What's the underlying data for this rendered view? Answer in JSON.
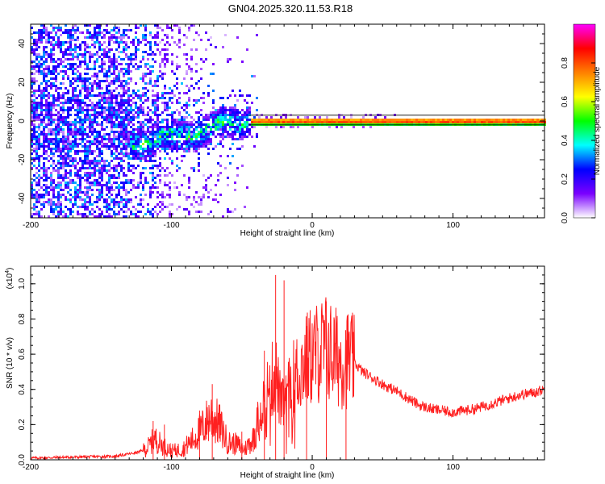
{
  "title": "GN04.2025.320.11.53.R18",
  "chart_data": [
    {
      "type": "heatmap",
      "name": "spectrogram",
      "xlabel": "Height of straight line (km)",
      "ylabel": "Frequency (Hz)",
      "xlim": [
        -200,
        165
      ],
      "ylim": [
        -50,
        50
      ],
      "xticks": [
        -200,
        -100,
        0,
        100
      ],
      "yticks": [
        -40,
        -20,
        0,
        20,
        40
      ],
      "colorbar": {
        "label": "Normalized spectral amplitude",
        "range": [
          0.0,
          1.0
        ],
        "ticks": [
          0.0,
          0.2,
          0.4,
          0.6,
          0.8
        ],
        "colors": [
          "#ffffff",
          "#7a00ff",
          "#0000ff",
          "#00ffff",
          "#00ff00",
          "#ffff00",
          "#ff8000",
          "#ff0000",
          "#ff00ff"
        ]
      },
      "features": [
        {
          "name": "dominant-tone",
          "x_range": [
            -45,
            165
          ],
          "frequency": 0.5,
          "amplitude": 0.95
        },
        {
          "name": "noisy-scatter",
          "x_range": [
            -200,
            -40
          ],
          "frequency_spread": 50,
          "amplitude": 0.25
        },
        {
          "name": "converging-branch",
          "x_range": [
            -130,
            -45
          ],
          "frequency_range": [
            -10,
            2
          ],
          "amplitude": 0.4
        }
      ]
    },
    {
      "type": "line",
      "name": "snr-plot",
      "xlabel": "Height of straight line (km)",
      "ylabel": "SNR (10 * v/v)",
      "scale_note": "(x10",
      "scale_exp": "4",
      "scale_close": ")",
      "xlim": [
        -200,
        165
      ],
      "ylim": [
        0,
        1.1
      ],
      "xticks": [
        -200,
        -100,
        0,
        100
      ],
      "yticks": [
        0.0,
        0.2,
        0.4,
        0.6,
        0.8,
        1.0
      ],
      "ytick_labels": [
        "0.0",
        "0.2",
        "0.4",
        "0.6",
        "0.8",
        "1.0"
      ],
      "series": [
        {
          "name": "SNR",
          "color": "#ff2020",
          "x": [
            -200,
            -170,
            -140,
            -125,
            -118,
            -112,
            -106,
            -100,
            -92,
            -84,
            -78,
            -72,
            -66,
            -60,
            -54,
            -48,
            -42,
            -38,
            -34,
            -30,
            -26,
            -22,
            -18,
            -14,
            -10,
            -6,
            -2,
            2,
            6,
            10,
            14,
            18,
            22,
            26,
            30,
            36,
            44,
            52,
            60,
            68,
            76,
            84,
            92,
            100,
            108,
            116,
            124,
            132,
            140,
            148,
            156,
            165
          ],
          "values": [
            0.01,
            0.015,
            0.02,
            0.04,
            0.06,
            0.12,
            0.08,
            0.05,
            0.06,
            0.12,
            0.18,
            0.25,
            0.2,
            0.1,
            0.09,
            0.06,
            0.12,
            0.25,
            0.35,
            0.42,
            0.5,
            0.3,
            0.35,
            0.45,
            0.5,
            0.55,
            0.58,
            0.6,
            0.62,
            0.64,
            0.6,
            0.58,
            0.56,
            0.58,
            0.55,
            0.5,
            0.46,
            0.42,
            0.39,
            0.35,
            0.31,
            0.29,
            0.28,
            0.27,
            0.28,
            0.29,
            0.31,
            0.33,
            0.35,
            0.37,
            0.38,
            0.4
          ],
          "spikes": [
            {
              "x": -113,
              "value": 0.22
            },
            {
              "x": -105,
              "value": 0.2
            },
            {
              "x": -80,
              "value": 0.28
            },
            {
              "x": -71,
              "value": 0.43
            },
            {
              "x": -50,
              "value": 0.16
            },
            {
              "x": -34,
              "value": 0.62
            },
            {
              "x": -26,
              "value": 1.05
            },
            {
              "x": -20,
              "value": 1.02
            },
            {
              "x": -4,
              "value": 0.76
            },
            {
              "x": 10,
              "value": 0.9
            },
            {
              "x": 24,
              "value": 0.68
            }
          ]
        }
      ]
    }
  ]
}
